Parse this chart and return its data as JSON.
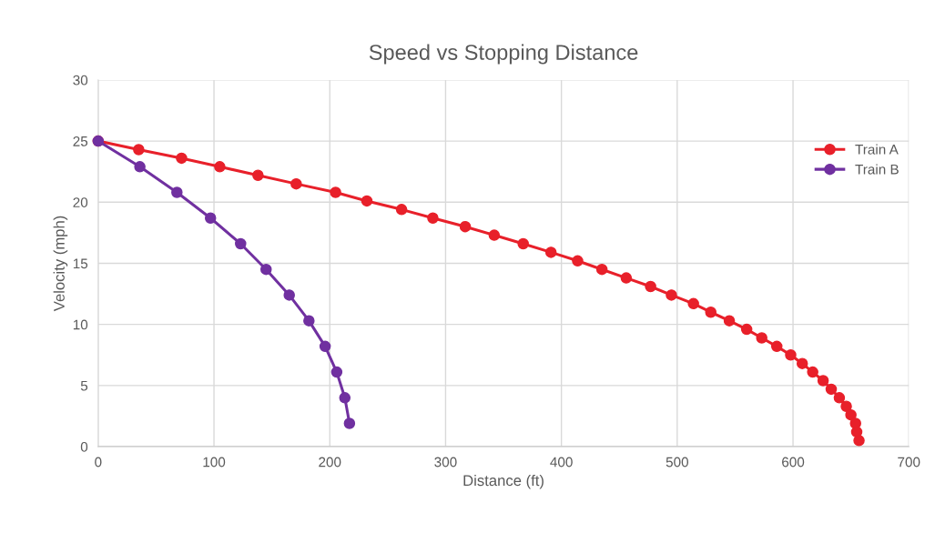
{
  "chart_data": {
    "type": "line",
    "title": "Speed vs Stopping Distance",
    "xlabel": "Distance (ft)",
    "ylabel": "Velocity (mph)",
    "xlim": [
      0,
      700
    ],
    "xticks": [
      0,
      100,
      200,
      300,
      400,
      500,
      600,
      700
    ],
    "ylim": [
      0,
      30
    ],
    "yticks": [
      0,
      5,
      10,
      15,
      20,
      25,
      30
    ],
    "grid": true,
    "legend": "right",
    "marker": "circle",
    "line_style": "solid",
    "series": [
      {
        "name": "Train A",
        "color": "#e8202a",
        "x": [
          0,
          35,
          72,
          105,
          138,
          171,
          205,
          232,
          262,
          289,
          317,
          342,
          367,
          391,
          414,
          435,
          456,
          477,
          495,
          514,
          529,
          545,
          560,
          573,
          586,
          598,
          608,
          617,
          626,
          633,
          640,
          646,
          650,
          654,
          655,
          657
        ],
        "values": [
          25,
          24.3,
          23.6,
          22.9,
          22.2,
          21.5,
          20.8,
          20.1,
          19.4,
          18.7,
          18.0,
          17.3,
          16.6,
          15.9,
          15.2,
          14.5,
          13.8,
          13.1,
          12.4,
          11.7,
          11.0,
          10.3,
          9.6,
          8.9,
          8.2,
          7.5,
          6.8,
          6.1,
          5.4,
          4.7,
          4.0,
          3.3,
          2.6,
          1.9,
          1.2,
          0.5
        ]
      },
      {
        "name": "Train B",
        "color": "#7030a0",
        "x": [
          0,
          36,
          68,
          97,
          123,
          145,
          165,
          182,
          196,
          206,
          213,
          217
        ],
        "values": [
          25,
          22.9,
          20.8,
          18.7,
          16.6,
          14.5,
          12.4,
          10.3,
          8.2,
          6.1,
          4.0,
          1.9
        ]
      }
    ]
  }
}
